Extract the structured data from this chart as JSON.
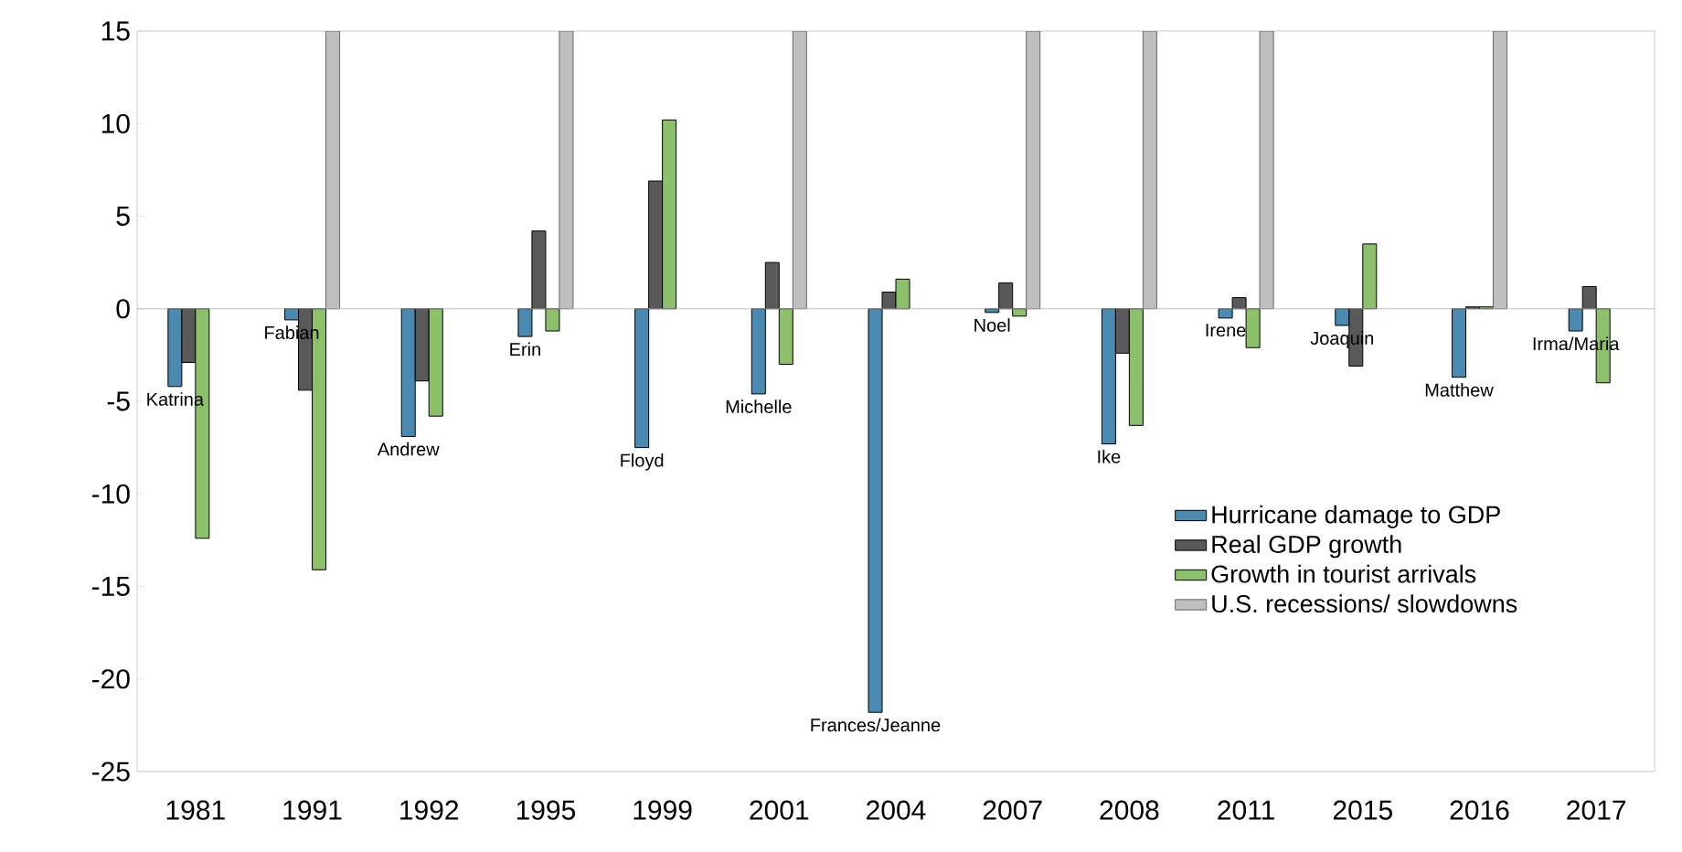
{
  "chart_data": {
    "type": "bar",
    "categories": [
      "1981",
      "1991",
      "1992",
      "1995",
      "1999",
      "2001",
      "2004",
      "2007",
      "2008",
      "2011",
      "2015",
      "2016",
      "2017"
    ],
    "series": [
      {
        "name": "Hurricane damage to GDP",
        "color": "#4a8ab0",
        "values": [
          -4.2,
          -0.6,
          -6.9,
          -1.5,
          -7.5,
          -4.6,
          -21.8,
          -0.2,
          -7.3,
          -0.5,
          -0.9,
          -3.7,
          -1.2
        ]
      },
      {
        "name": "Real GDP growth",
        "color": "#595959",
        "values": [
          -2.9,
          -4.4,
          -3.9,
          4.2,
          6.9,
          2.5,
          0.9,
          1.4,
          -2.4,
          0.6,
          -3.1,
          0.1,
          1.2
        ]
      },
      {
        "name": "Growth in tourist arrivals",
        "color": "#8dc06a",
        "values": [
          -12.4,
          -14.1,
          -5.8,
          -1.2,
          10.2,
          -3.0,
          1.6,
          -0.4,
          -6.3,
          -2.1,
          3.5,
          0.1,
          -4.0
        ]
      },
      {
        "name": "U.S. recessions/ slowdowns",
        "color": "#bfbfbf",
        "values": [
          null,
          15,
          null,
          15,
          null,
          15,
          null,
          15,
          15,
          15,
          null,
          15,
          null
        ]
      }
    ],
    "ylim": [
      -25,
      15
    ],
    "yticks": [
      -25,
      -20,
      -15,
      -10,
      -5,
      0,
      5,
      10,
      15
    ],
    "legend": "bottom right",
    "annotations": [
      "Katrina",
      "Fabian",
      "Andrew",
      "Erin",
      "Floyd",
      "Michelle",
      "Frances/Jeanne",
      "Noel",
      "Ike",
      "Irene",
      "Joaquin",
      "Matthew",
      "Irma/Maria"
    ]
  }
}
